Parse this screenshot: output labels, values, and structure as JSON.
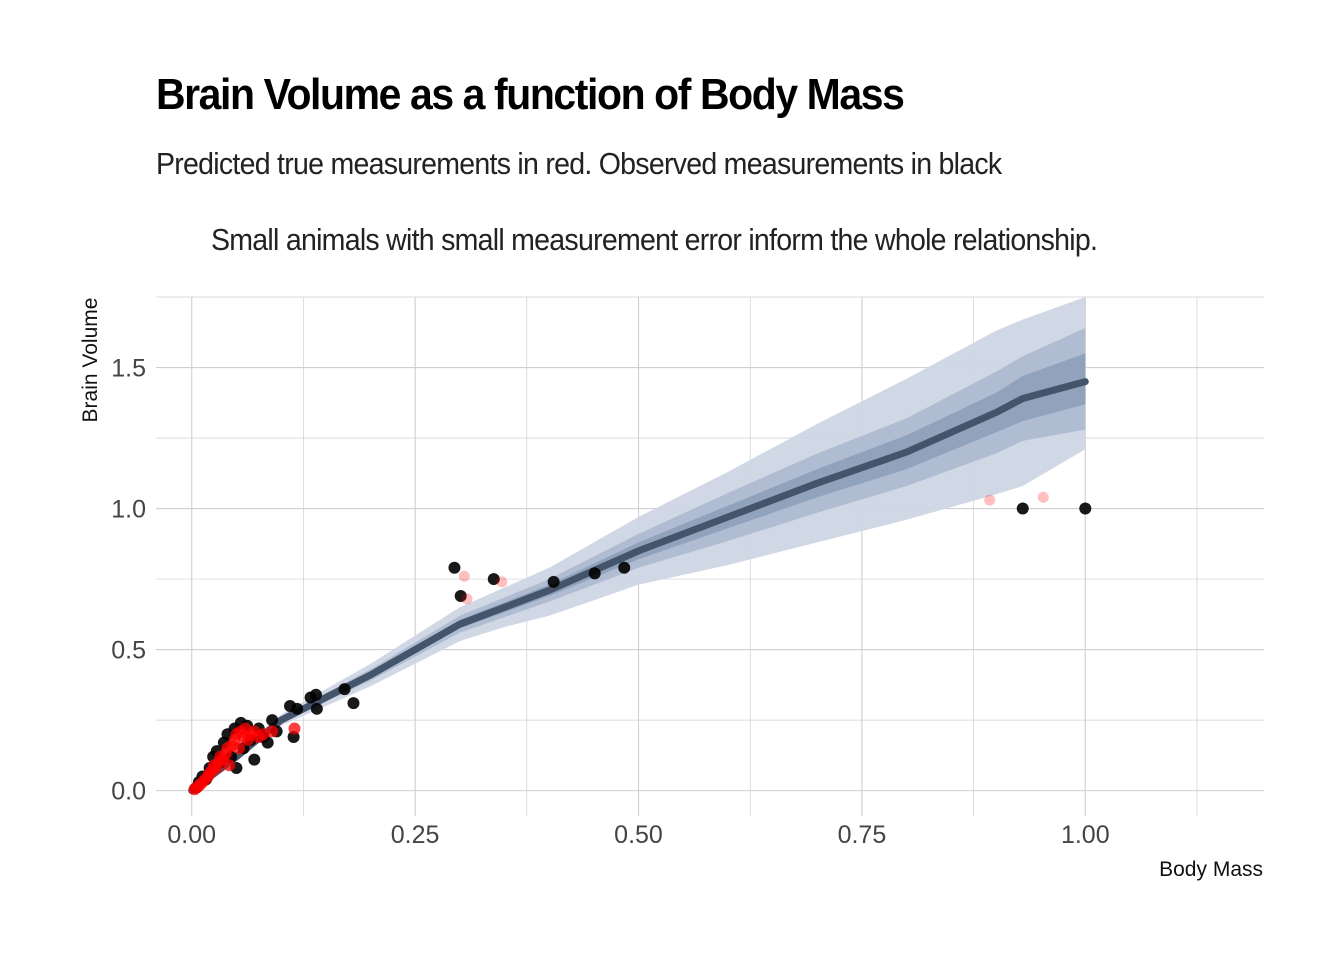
{
  "chart_data": {
    "type": "scatter",
    "title": "Brain Volume as a function of Body Mass",
    "subtitle": "Predicted true measurements in red. Observed measurements in black",
    "caption": "Small animals with small measurement error inform the whole relationship.",
    "xlabel": "Body Mass",
    "ylabel": "Brain Volume",
    "xlim": [
      -0.04,
      1.2
    ],
    "ylim": [
      -0.09,
      1.75
    ],
    "x_ticks": [
      0.0,
      0.25,
      0.5,
      0.75,
      1.0
    ],
    "x_tick_labels": [
      "0.00",
      "0.25",
      "0.50",
      "0.75",
      "1.00"
    ],
    "y_ticks": [
      0.0,
      0.5,
      1.0,
      1.5
    ],
    "y_tick_labels": [
      "0.0",
      "0.5",
      "1.0",
      "1.5"
    ],
    "grid": true,
    "colors": {
      "predicted": "#ff0000",
      "observed": "#000000",
      "line": "#44546a",
      "band_outer": "#cfd6e4",
      "band_mid": "#aebbd0",
      "band_inner": "#8ea0bb",
      "grid": "#cfcfd4"
    },
    "line": {
      "x": [
        0.0,
        0.05,
        0.1,
        0.15,
        0.2,
        0.3,
        0.35,
        0.4,
        0.5,
        0.6,
        0.7,
        0.8,
        0.9,
        0.93,
        1.0
      ],
      "y": [
        0.0,
        0.12,
        0.25,
        0.33,
        0.41,
        0.59,
        0.65,
        0.71,
        0.85,
        0.97,
        1.09,
        1.2,
        1.34,
        1.39,
        1.45
      ],
      "bands": [
        {
          "lower": [
            0.0,
            0.11,
            0.23,
            0.3,
            0.37,
            0.53,
            0.58,
            0.62,
            0.73,
            0.8,
            0.88,
            0.96,
            1.05,
            1.08,
            1.21
          ],
          "upper": [
            0.0,
            0.13,
            0.27,
            0.36,
            0.45,
            0.65,
            0.72,
            0.79,
            0.97,
            1.13,
            1.3,
            1.46,
            1.63,
            1.67,
            1.75
          ]
        },
        {
          "lower": [
            0.0,
            0.115,
            0.24,
            0.315,
            0.39,
            0.56,
            0.615,
            0.67,
            0.79,
            0.885,
            0.985,
            1.08,
            1.195,
            1.24,
            1.28
          ],
          "upper": [
            0.0,
            0.125,
            0.26,
            0.345,
            0.43,
            0.62,
            0.685,
            0.75,
            0.91,
            1.055,
            1.195,
            1.32,
            1.485,
            1.54,
            1.64
          ]
        },
        {
          "lower": [
            0.0,
            0.118,
            0.245,
            0.323,
            0.4,
            0.575,
            0.632,
            0.69,
            0.82,
            0.93,
            1.04,
            1.14,
            1.27,
            1.31,
            1.37
          ],
          "upper": [
            0.0,
            0.122,
            0.255,
            0.337,
            0.42,
            0.605,
            0.668,
            0.73,
            0.88,
            1.01,
            1.14,
            1.26,
            1.41,
            1.47,
            1.55
          ]
        }
      ]
    },
    "predicted": [
      {
        "x": 0.003,
        "y": 0.005
      },
      {
        "x": 0.006,
        "y": 0.012
      },
      {
        "x": 0.009,
        "y": 0.02
      },
      {
        "x": 0.012,
        "y": 0.03
      },
      {
        "x": 0.015,
        "y": 0.04
      },
      {
        "x": 0.018,
        "y": 0.05
      },
      {
        "x": 0.02,
        "y": 0.06
      },
      {
        "x": 0.022,
        "y": 0.07
      },
      {
        "x": 0.025,
        "y": 0.09
      },
      {
        "x": 0.028,
        "y": 0.08
      },
      {
        "x": 0.03,
        "y": 0.1
      },
      {
        "x": 0.032,
        "y": 0.12
      },
      {
        "x": 0.035,
        "y": 0.11
      },
      {
        "x": 0.038,
        "y": 0.13
      },
      {
        "x": 0.04,
        "y": 0.15
      },
      {
        "x": 0.042,
        "y": 0.09
      },
      {
        "x": 0.045,
        "y": 0.16
      },
      {
        "x": 0.048,
        "y": 0.18
      },
      {
        "x": 0.05,
        "y": 0.2
      },
      {
        "x": 0.053,
        "y": 0.15
      },
      {
        "x": 0.055,
        "y": 0.21
      },
      {
        "x": 0.058,
        "y": 0.19
      },
      {
        "x": 0.06,
        "y": 0.22
      },
      {
        "x": 0.063,
        "y": 0.18
      },
      {
        "x": 0.066,
        "y": 0.2
      },
      {
        "x": 0.07,
        "y": 0.21
      },
      {
        "x": 0.075,
        "y": 0.19
      },
      {
        "x": 0.08,
        "y": 0.2
      },
      {
        "x": 0.09,
        "y": 0.21
      },
      {
        "x": 0.115,
        "y": 0.22
      },
      {
        "x": 0.305,
        "y": 0.76
      },
      {
        "x": 0.308,
        "y": 0.68
      },
      {
        "x": 0.347,
        "y": 0.74
      },
      {
        "x": 0.893,
        "y": 1.03
      },
      {
        "x": 0.953,
        "y": 1.04
      }
    ],
    "observed": [
      {
        "x": 0.005,
        "y": 0.01
      },
      {
        "x": 0.008,
        "y": 0.03
      },
      {
        "x": 0.012,
        "y": 0.05
      },
      {
        "x": 0.016,
        "y": 0.04
      },
      {
        "x": 0.02,
        "y": 0.08
      },
      {
        "x": 0.024,
        "y": 0.12
      },
      {
        "x": 0.028,
        "y": 0.14
      },
      {
        "x": 0.032,
        "y": 0.1
      },
      {
        "x": 0.036,
        "y": 0.17
      },
      {
        "x": 0.04,
        "y": 0.2
      },
      {
        "x": 0.044,
        "y": 0.12
      },
      {
        "x": 0.048,
        "y": 0.22
      },
      {
        "x": 0.05,
        "y": 0.08
      },
      {
        "x": 0.055,
        "y": 0.24
      },
      {
        "x": 0.058,
        "y": 0.15
      },
      {
        "x": 0.062,
        "y": 0.23
      },
      {
        "x": 0.066,
        "y": 0.18
      },
      {
        "x": 0.07,
        "y": 0.11
      },
      {
        "x": 0.075,
        "y": 0.22
      },
      {
        "x": 0.08,
        "y": 0.19
      },
      {
        "x": 0.085,
        "y": 0.17
      },
      {
        "x": 0.09,
        "y": 0.25
      },
      {
        "x": 0.095,
        "y": 0.21
      },
      {
        "x": 0.11,
        "y": 0.3
      },
      {
        "x": 0.114,
        "y": 0.19
      },
      {
        "x": 0.118,
        "y": 0.29
      },
      {
        "x": 0.133,
        "y": 0.33
      },
      {
        "x": 0.139,
        "y": 0.34
      },
      {
        "x": 0.14,
        "y": 0.29
      },
      {
        "x": 0.171,
        "y": 0.36
      },
      {
        "x": 0.181,
        "y": 0.31
      },
      {
        "x": 0.294,
        "y": 0.79
      },
      {
        "x": 0.301,
        "y": 0.69
      },
      {
        "x": 0.338,
        "y": 0.75
      },
      {
        "x": 0.405,
        "y": 0.74
      },
      {
        "x": 0.451,
        "y": 0.77
      },
      {
        "x": 0.484,
        "y": 0.79
      },
      {
        "x": 0.93,
        "y": 1.0
      },
      {
        "x": 1.0,
        "y": 1.0
      }
    ]
  }
}
